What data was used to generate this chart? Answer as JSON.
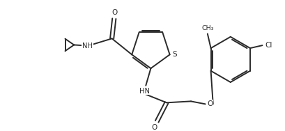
{
  "bg_color": "#ffffff",
  "line_color": "#2a2a2a",
  "line_width": 1.4,
  "figsize": [
    4.09,
    1.88
  ],
  "dpi": 100,
  "xlim": [
    0,
    10
  ],
  "ylim": [
    0,
    4.6
  ]
}
